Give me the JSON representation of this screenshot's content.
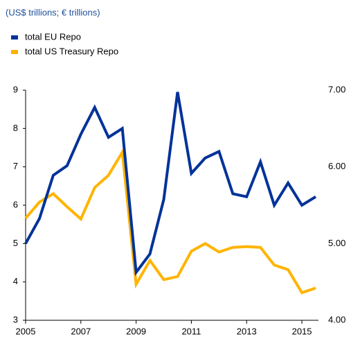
{
  "chart_data": {
    "type": "line",
    "subtitle": "(US$ trillions; € trillions)",
    "x": [
      2005,
      2005.5,
      2006,
      2006.5,
      2007,
      2007.5,
      2008,
      2008.5,
      2009,
      2009.5,
      2010,
      2010.5,
      2011,
      2011.5,
      2012,
      2012.5,
      2013,
      2013.5,
      2014,
      2014.5,
      2015,
      2015.5
    ],
    "xlim": [
      2005,
      2015.6
    ],
    "xticks": [
      2005,
      2007,
      2009,
      2011,
      2013,
      2015
    ],
    "ylim": [
      3,
      9
    ],
    "yticks": [
      3,
      4,
      5,
      6,
      7,
      8,
      9
    ],
    "y2lim": [
      4,
      7
    ],
    "y2ticks": [
      {
        "value": 4,
        "label": "4.00"
      },
      {
        "value": 5,
        "label": "5.00"
      },
      {
        "value": 6,
        "label": "6.00"
      },
      {
        "value": 7,
        "label": "7.00"
      }
    ],
    "series": [
      {
        "name": "total EU Repo",
        "color": "#003299",
        "values": [
          5.0,
          5.65,
          6.78,
          7.03,
          7.85,
          8.55,
          7.77,
          8.0,
          4.25,
          4.73,
          6.15,
          8.95,
          6.83,
          7.23,
          7.4,
          6.3,
          6.22,
          7.13,
          6.0,
          6.58,
          6.0,
          6.22
        ]
      },
      {
        "name": "total US Treasury Repo",
        "color": "#ffb400",
        "axis": "y2",
        "values": [
          5.33,
          5.54,
          5.65,
          5.48,
          5.32,
          5.73,
          5.89,
          6.19,
          4.47,
          4.78,
          4.53,
          4.57,
          4.9,
          5.0,
          4.89,
          4.95,
          4.96,
          4.95,
          4.72,
          4.66,
          4.36,
          4.42
        ]
      }
    ],
    "legend": "top-left"
  }
}
